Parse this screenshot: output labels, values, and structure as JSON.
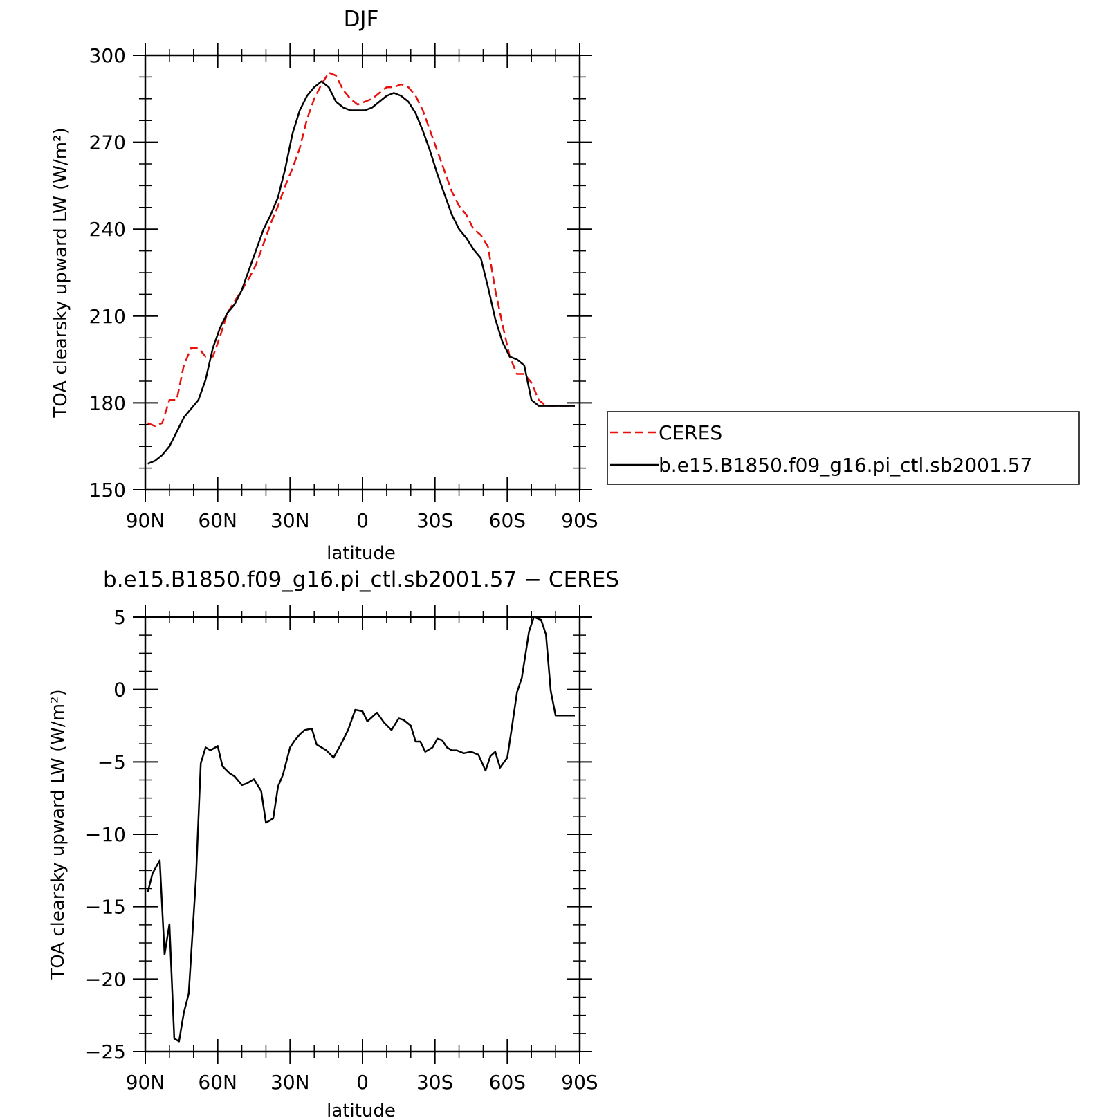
{
  "chart_data": [
    {
      "type": "line",
      "title": "DJF",
      "xlabel": "latitude",
      "ylabel": "TOA clearsky upward LW",
      "ylabel_unit": "(W/m²)",
      "xlim": [
        90,
        -90
      ],
      "ylim": [
        150,
        300
      ],
      "xticks": [
        90,
        60,
        30,
        0,
        -30,
        -60,
        -90
      ],
      "xtick_labels": [
        "90N",
        "60N",
        "30N",
        "0",
        "30S",
        "60S",
        "90S"
      ],
      "yticks": [
        150,
        180,
        210,
        240,
        270,
        300
      ],
      "ytick_labels": [
        "150",
        "180",
        "210",
        "240",
        "270",
        "300"
      ],
      "legend_position": "right",
      "grid": false,
      "x": [
        89,
        86,
        83,
        80,
        77,
        74,
        71,
        68,
        65,
        62,
        59,
        56,
        53,
        50,
        47,
        44,
        41,
        38,
        35,
        32,
        29,
        26,
        23,
        20,
        17,
        14,
        11,
        8,
        5,
        2,
        -1,
        -4,
        -7,
        -10,
        -13,
        -16,
        -19,
        -22,
        -25,
        -28,
        -31,
        -34,
        -37,
        -40,
        -43,
        -46,
        -49,
        -52,
        -55,
        -58,
        -61,
        -64,
        -67,
        -70,
        -73,
        -76,
        -79,
        -82,
        -85,
        -88
      ],
      "series": [
        {
          "name": "CERES",
          "color": "#e8100b",
          "dash": true,
          "values": [
            173,
            172,
            173,
            181,
            181,
            193,
            199,
            199,
            196,
            196,
            203,
            211,
            215,
            219,
            223,
            228,
            235,
            242,
            248,
            255,
            261,
            268,
            278,
            285,
            290,
            294,
            293,
            288,
            285,
            283,
            284,
            285,
            287,
            289,
            289,
            290,
            289,
            286,
            281,
            274,
            267,
            260,
            253,
            248,
            245,
            240,
            238,
            234,
            219,
            207,
            196,
            190,
            190,
            187,
            181,
            179,
            179,
            179,
            179,
            179
          ]
        },
        {
          "name": "b.e15.B1850.f09_g16.pi_ctl.sb2001.57",
          "color": "#000000",
          "dash": false,
          "values": [
            159,
            160,
            162,
            165,
            170,
            175,
            178,
            181,
            188,
            199,
            206,
            211,
            214,
            219,
            226,
            233,
            240,
            245,
            251,
            261,
            273,
            281,
            286,
            289,
            291,
            289,
            284,
            282,
            281,
            281,
            281,
            282,
            284,
            286,
            287,
            286,
            284,
            280,
            274,
            267,
            259,
            252,
            245,
            240,
            237,
            233,
            230,
            220,
            209,
            201,
            196,
            195,
            193,
            181,
            179,
            179,
            179,
            179,
            179,
            179
          ]
        }
      ]
    },
    {
      "type": "line",
      "title": "b.e15.B1850.f09_g16.pi_ctl.sb2001.57 − CERES",
      "xlabel": "latitude",
      "ylabel": "TOA clearsky upward LW",
      "ylabel_unit": "(W/m²)",
      "xlim": [
        90,
        -90
      ],
      "ylim": [
        -25,
        5
      ],
      "xticks": [
        90,
        60,
        30,
        0,
        -30,
        -60,
        -90
      ],
      "xtick_labels": [
        "90N",
        "60N",
        "30N",
        "0",
        "30S",
        "60S",
        "90S"
      ],
      "yticks": [
        -25,
        -20,
        -15,
        -10,
        -5,
        0,
        5
      ],
      "ytick_labels": [
        "−25",
        "−20",
        "−15",
        "−10",
        "−5",
        "0",
        "5"
      ],
      "grid": false,
      "series": [
        {
          "color": "#000000",
          "x": [
            89,
            87,
            84,
            82,
            80,
            78,
            76,
            74,
            72,
            69,
            67,
            65,
            63,
            60,
            58,
            55,
            53,
            50,
            48,
            45,
            42,
            40,
            37,
            35,
            33,
            30,
            28,
            26,
            24,
            21,
            19,
            15,
            12,
            9,
            6,
            3,
            0,
            -2,
            -4,
            -6,
            -9,
            -12,
            -15,
            -17,
            -20,
            -22,
            -24,
            -26,
            -29,
            -31,
            -33,
            -35,
            -37,
            -39,
            -42,
            -45,
            -48,
            -51,
            -53,
            -55,
            -57,
            -60,
            -62,
            -64,
            -66,
            -69,
            -71,
            -74,
            -76,
            -78,
            -80,
            -83,
            -86,
            -88
          ],
          "values": [
            -14,
            -12.7,
            -11.8,
            -18.3,
            -16.2,
            -24.1,
            -24.3,
            -22.3,
            -21,
            -13,
            -5.1,
            -4,
            -4.2,
            -3.9,
            -5.3,
            -5.8,
            -6,
            -6.6,
            -6.5,
            -6.2,
            -7,
            -9.2,
            -8.9,
            -6.7,
            -5.9,
            -4,
            -3.5,
            -3.1,
            -2.8,
            -2.7,
            -3.8,
            -4.2,
            -4.7,
            -3.8,
            -2.8,
            -1.4,
            -1.5,
            -2.2,
            -1.9,
            -1.6,
            -2.3,
            -2.8,
            -2,
            -2.1,
            -2.5,
            -3.6,
            -3.6,
            -4.3,
            -4,
            -3.4,
            -3.5,
            -4,
            -4.2,
            -4.2,
            -4.4,
            -4.3,
            -4.5,
            -5.6,
            -4.6,
            -4.3,
            -5.4,
            -4.7,
            -2.5,
            -0.2,
            0.8,
            4,
            5,
            4.8,
            3.8,
            -0.1,
            -1.8,
            -1.8,
            -1.8,
            -1.8
          ]
        }
      ]
    }
  ]
}
